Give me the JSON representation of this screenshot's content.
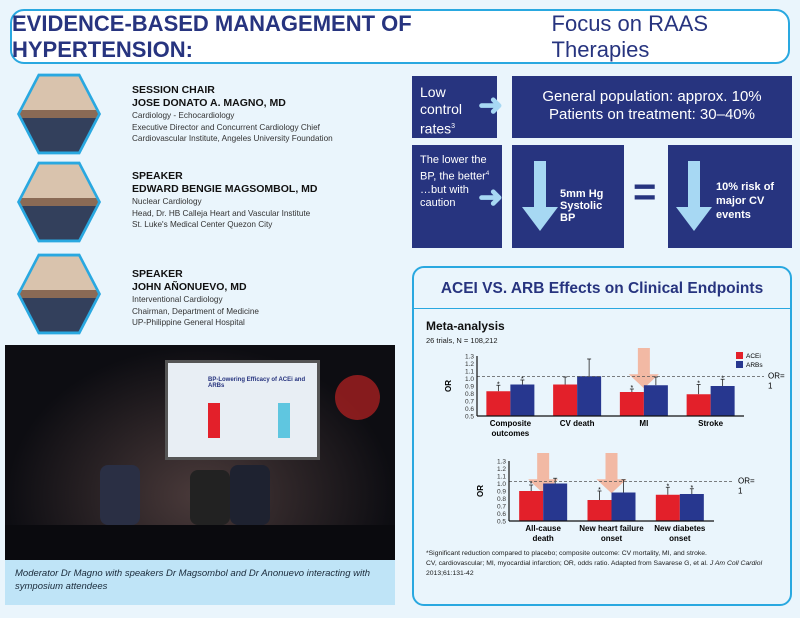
{
  "title": {
    "bold": "EVIDENCE-BASED MANAGEMENT OF HYPERTENSION:",
    "rest": "Focus on RAAS Therapies"
  },
  "speakers": [
    {
      "role": "SESSION CHAIR",
      "name": "JOSE DONATO A. MAGNO, MD",
      "lines": [
        "Cardiology - Echocardiology",
        "Executive Director and Concurrent Cardiology Chief",
        "Cardiovascular Institute, Angeles University Foundation"
      ]
    },
    {
      "role": "SPEAKER",
      "name": "EDWARD BENGIE MAGSOMBOL, MD",
      "lines": [
        "Nuclear Cardiology",
        "Head, Dr. HB Calleja Heart and Vascular Institute",
        "St. Luke's Medical Center Quezon City"
      ]
    },
    {
      "role": "SPEAKER",
      "name": "JOHN  AÑONUEVO, MD",
      "lines": [
        "Interventional Cardiology",
        "Chairman, Department of Medicine",
        "UP-Philippine General Hospital"
      ]
    }
  ],
  "photo": {
    "screen_title": "BP-Lowering Efficacy of ACEi and ARBs",
    "caption": "Moderator Dr Magno with speakers Dr Magsombol and Dr Anonuevo interacting with symposium attendees"
  },
  "control": {
    "label": "Low control rates",
    "sup": "3",
    "line1": "General population: approx. 10%",
    "line2": "Patients on treatment: 30–40%"
  },
  "lower": {
    "label1": "The lower the BP, the better",
    "sup": "4",
    "label2": "…but with caution",
    "mid": "5mm Hg Systolic BP",
    "eq": "=",
    "right": "10% risk of major CV events"
  },
  "acei": {
    "heading": "ACEI VS. ARB Effects on Clinical Endpoints",
    "meta": "Meta-analysis",
    "trials": "26 trials, N = 108,212",
    "footnote1": "*Significant reduction compared to placebo; composite outcome: CV mortality, MI, and stroke.",
    "footnote2": "CV, cardiovascular; MI, myocardial infarction; OR, odds ratio. Adapted from Savarese G, et al. ",
    "journal": "J Am Coll Cardiol",
    "footnote3": "2013;61:131-42"
  },
  "chart_data": [
    {
      "type": "bar",
      "ylabel": "OR",
      "ylim": [
        0.5,
        1.3
      ],
      "yticks": [
        "0.5",
        "0.6",
        "0.7",
        "0.8",
        "0.9",
        "1.0",
        "1.1",
        "1.2",
        "1.3"
      ],
      "ref_label": "OR= 1",
      "legend": [
        "ACEi",
        "ARBs"
      ],
      "colors": [
        "#e3202a",
        "#27378f"
      ],
      "categories": [
        "Composite outcomes",
        "CV death",
        "MI",
        "Stroke"
      ],
      "series": [
        {
          "name": "ACEi",
          "values": [
            0.83,
            0.92,
            0.82,
            0.79
          ],
          "upper": [
            0.91,
            1.02,
            0.86,
            0.92
          ],
          "sig": [
            true,
            false,
            true,
            true
          ]
        },
        {
          "name": "ARBs",
          "values": [
            0.92,
            1.03,
            0.91,
            0.9
          ],
          "upper": [
            0.98,
            1.26,
            1.02,
            0.99
          ],
          "sig": [
            true,
            false,
            false,
            true
          ]
        }
      ],
      "highlight": [
        "MI"
      ]
    },
    {
      "type": "bar",
      "ylabel": "OR",
      "ylim": [
        0.5,
        1.3
      ],
      "yticks": [
        "0.5",
        "0.6",
        "0.7",
        "0.8",
        "0.9",
        "1.0",
        "1.1",
        "1.2",
        "1.3"
      ],
      "ref_label": "OR= 1",
      "categories": [
        "All-cause death",
        "New heart failure onset",
        "New diabetes onset"
      ],
      "series": [
        {
          "name": "ACEi",
          "values": [
            0.9,
            0.78,
            0.85
          ],
          "upper": [
            0.98,
            0.9,
            0.95
          ],
          "sig": [
            true,
            true,
            true
          ]
        },
        {
          "name": "ARBs",
          "values": [
            1.0,
            0.88,
            0.86
          ],
          "upper": [
            1.07,
            1.05,
            0.93
          ],
          "sig": [
            false,
            false,
            true
          ]
        }
      ],
      "highlight": [
        "All-cause death",
        "New heart failure onset"
      ]
    }
  ]
}
